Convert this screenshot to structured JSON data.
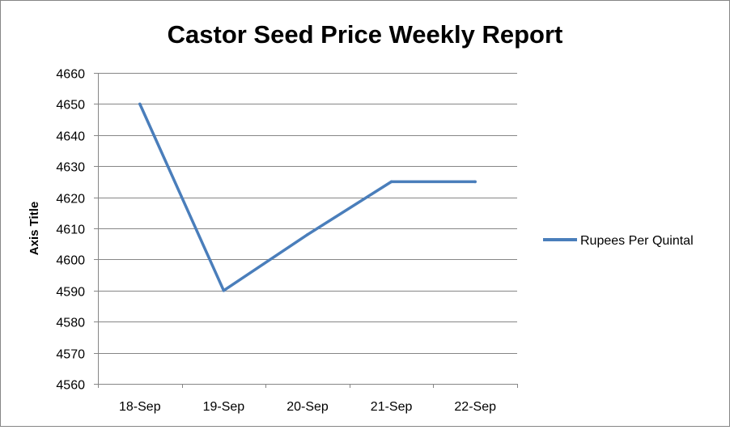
{
  "chart_data": {
    "type": "line",
    "title": "Castor Seed Price Weekly Report",
    "xlabel": "",
    "ylabel": "Axis Title",
    "categories": [
      "18-Sep",
      "19-Sep",
      "20-Sep",
      "21-Sep",
      "22-Sep"
    ],
    "series": [
      {
        "name": "Rupees Per Quintal",
        "values": [
          4650,
          4590,
          4608,
          4625,
          4625
        ],
        "color": "#4a7ebb"
      }
    ],
    "ylim": [
      4560,
      4660
    ],
    "yticks": [
      4560,
      4570,
      4580,
      4590,
      4600,
      4610,
      4620,
      4630,
      4640,
      4650,
      4660
    ],
    "grid": true,
    "legend_position": "right"
  }
}
